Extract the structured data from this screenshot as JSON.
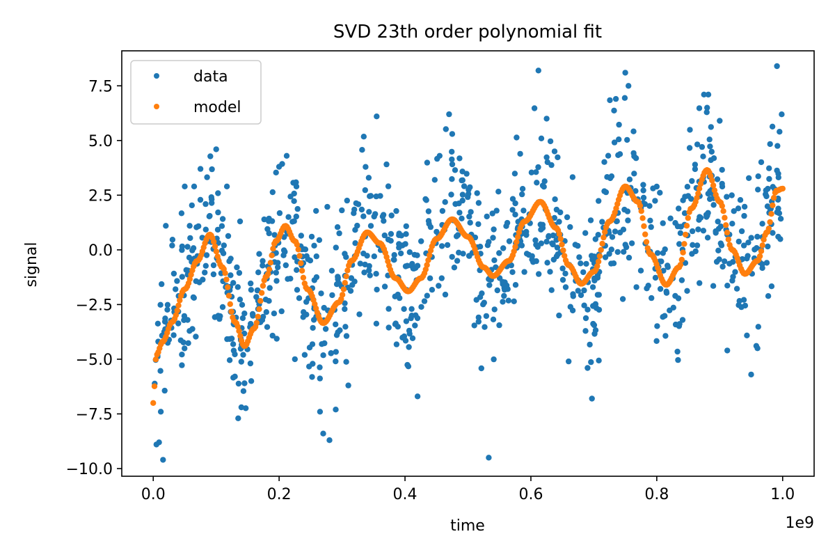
{
  "chart_data": {
    "type": "scatter",
    "title": "SVD 23th order polynomial fit",
    "xlabel": "time",
    "ylabel": "signal",
    "x_offset_label": "1e9",
    "x_scale": 1000000000,
    "xlim": [
      -0.05,
      1.05
    ],
    "ylim": [
      -10.35,
      9.1
    ],
    "x_ticks": [
      0.0,
      0.2,
      0.4,
      0.6,
      0.8,
      1.0
    ],
    "x_tick_labels": [
      "0.0",
      "0.2",
      "0.4",
      "0.6",
      "0.8",
      "1.0"
    ],
    "y_ticks": [
      -10.0,
      -7.5,
      -5.0,
      -2.5,
      0.0,
      2.5,
      5.0,
      7.5
    ],
    "y_tick_labels": [
      "−10.0",
      "−7.5",
      "−5.0",
      "−2.5",
      "0.0",
      "2.5",
      "5.0",
      "7.5"
    ],
    "grid": false,
    "legend": {
      "position": "top-left",
      "entries": [
        "data",
        "model"
      ]
    },
    "colors": {
      "data": "#1f77b4",
      "model": "#ff7f0e"
    },
    "series": [
      {
        "name": "data",
        "marker": "point",
        "n_points": 1000,
        "generator_note": "noisy samples around the model curve",
        "points": [
          [
            0.005,
            -8.9
          ],
          [
            0.012,
            -7.4
          ],
          [
            0.02,
            1.1
          ],
          [
            0.03,
            0.2
          ],
          [
            0.05,
            2.9
          ],
          [
            0.065,
            2.9
          ],
          [
            0.075,
            3.7
          ],
          [
            0.1,
            4.6
          ],
          [
            0.117,
            2.9
          ],
          [
            0.135,
            -7.7
          ],
          [
            0.14,
            -7.2
          ],
          [
            0.145,
            -6.1
          ],
          [
            0.2,
            3.8
          ],
          [
            0.212,
            4.3
          ],
          [
            0.225,
            -5.0
          ],
          [
            0.265,
            -7.4
          ],
          [
            0.27,
            -8.4
          ],
          [
            0.28,
            -8.7
          ],
          [
            0.29,
            -7.3
          ],
          [
            0.31,
            -6.2
          ],
          [
            0.355,
            6.1
          ],
          [
            0.42,
            -6.7
          ],
          [
            0.455,
            4.3
          ],
          [
            0.47,
            6.2
          ],
          [
            0.475,
            5.3
          ],
          [
            0.533,
            -9.5
          ],
          [
            0.612,
            8.2
          ],
          [
            0.625,
            6.0
          ],
          [
            0.66,
            -5.1
          ],
          [
            0.69,
            -5.4
          ],
          [
            0.697,
            -6.8
          ],
          [
            0.735,
            6.9
          ],
          [
            0.75,
            8.1
          ],
          [
            0.755,
            7.5
          ],
          [
            0.875,
            7.1
          ],
          [
            0.882,
            7.1
          ],
          [
            0.88,
            6.5
          ],
          [
            0.9,
            5.9
          ],
          [
            0.912,
            -4.6
          ],
          [
            0.95,
            -5.7
          ],
          [
            0.96,
            -4.5
          ],
          [
            0.995,
            5.4
          ],
          [
            0.993,
            0.6
          ]
        ]
      },
      {
        "name": "model",
        "marker": "point",
        "n_points": 500,
        "knots": [
          [
            0.0,
            -7.0
          ],
          [
            0.005,
            -4.8
          ],
          [
            0.015,
            -4.2
          ],
          [
            0.03,
            -3.3
          ],
          [
            0.05,
            -1.8
          ],
          [
            0.07,
            -0.5
          ],
          [
            0.09,
            0.7
          ],
          [
            0.11,
            -0.8
          ],
          [
            0.13,
            -3.3
          ],
          [
            0.145,
            -4.4
          ],
          [
            0.16,
            -3.6
          ],
          [
            0.18,
            -1.2
          ],
          [
            0.195,
            0.4
          ],
          [
            0.21,
            1.1
          ],
          [
            0.225,
            0.4
          ],
          [
            0.245,
            -1.8
          ],
          [
            0.27,
            -3.35
          ],
          [
            0.295,
            -2.4
          ],
          [
            0.315,
            -0.5
          ],
          [
            0.34,
            0.8
          ],
          [
            0.36,
            0.3
          ],
          [
            0.385,
            -1.3
          ],
          [
            0.405,
            -1.9
          ],
          [
            0.425,
            -1.3
          ],
          [
            0.45,
            0.5
          ],
          [
            0.475,
            1.4
          ],
          [
            0.5,
            0.6
          ],
          [
            0.525,
            -0.8
          ],
          [
            0.54,
            -1.2
          ],
          [
            0.565,
            -0.5
          ],
          [
            0.59,
            1.3
          ],
          [
            0.615,
            2.2
          ],
          [
            0.64,
            1.0
          ],
          [
            0.66,
            -0.7
          ],
          [
            0.68,
            -1.55
          ],
          [
            0.7,
            -1.0
          ],
          [
            0.725,
            1.3
          ],
          [
            0.75,
            2.9
          ],
          [
            0.77,
            2.2
          ],
          [
            0.79,
            -0.2
          ],
          [
            0.815,
            -1.6
          ],
          [
            0.835,
            -0.8
          ],
          [
            0.855,
            1.9
          ],
          [
            0.88,
            3.65
          ],
          [
            0.9,
            2.2
          ],
          [
            0.92,
            0.0
          ],
          [
            0.94,
            -1.1
          ],
          [
            0.96,
            -0.5
          ],
          [
            0.975,
            0.8
          ],
          [
            0.99,
            2.7
          ],
          [
            1.0,
            2.8
          ]
        ]
      }
    ]
  }
}
